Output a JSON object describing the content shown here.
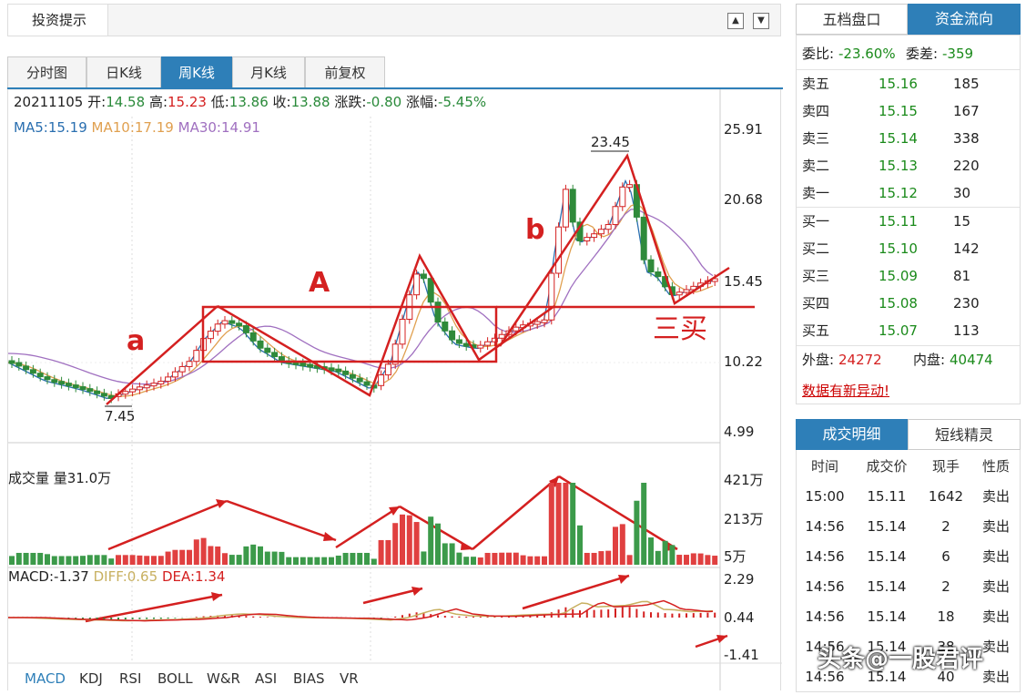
{
  "header": {
    "title": "投资提示",
    "up_icon": "▲",
    "down_icon": "▼"
  },
  "tabs": [
    "分时图",
    "日K线",
    "周K线",
    "月K线",
    "前复权"
  ],
  "active_tab": "周K线",
  "ohlc": {
    "date": "20211105",
    "open_label": "开:",
    "open": "14.58",
    "high_label": "高:",
    "high": "15.23",
    "low_label": "低:",
    "low": "13.86",
    "close_label": "收:",
    "close": "13.88",
    "change_label": "涨跌:",
    "change": "-0.80",
    "pct_label": "涨幅:",
    "pct": "-5.45%"
  },
  "ma": {
    "ma5_label": "MA5:",
    "ma5": "15.19",
    "ma10_label": "MA10:",
    "ma10": "17.19",
    "ma30_label": "MA30:",
    "ma30": "14.91"
  },
  "price_axis": [
    "25.91",
    "20.68",
    "15.45",
    "10.22",
    "4.99"
  ],
  "annotations": {
    "high_price": "23.45",
    "low_price": "7.45",
    "a": "a",
    "A": "A",
    "b": "b",
    "three_buy": "三买"
  },
  "volume": {
    "label": "成交量 量31.0万",
    "axis": [
      "421万",
      "213万",
      "5万"
    ]
  },
  "macd": {
    "macd_label": "MACD:",
    "macd": "-1.37",
    "diff_label": "DIFF:",
    "diff": "0.65",
    "dea_label": "DEA:",
    "dea": "1.34",
    "axis": [
      "2.29",
      "0.44",
      "-1.41"
    ]
  },
  "indicator_tabs": [
    "MACD",
    "KDJ",
    "RSI",
    "BOLL",
    "W&R",
    "ASI",
    "BIAS",
    "VR"
  ],
  "order_book": {
    "tabs": [
      "五档盘口",
      "资金流向"
    ],
    "weibi_label": "委比:",
    "weibi": "-23.60%",
    "weicha_label": "委差:",
    "weicha": "-359",
    "asks": [
      {
        "label": "卖五",
        "price": "15.16",
        "vol": "185"
      },
      {
        "label": "卖四",
        "price": "15.15",
        "vol": "167"
      },
      {
        "label": "卖三",
        "price": "15.14",
        "vol": "338"
      },
      {
        "label": "卖二",
        "price": "15.13",
        "vol": "220"
      },
      {
        "label": "卖一",
        "price": "15.12",
        "vol": "30"
      }
    ],
    "bids": [
      {
        "label": "买一",
        "price": "15.11",
        "vol": "15"
      },
      {
        "label": "买二",
        "price": "15.10",
        "vol": "142"
      },
      {
        "label": "买三",
        "price": "15.09",
        "vol": "81"
      },
      {
        "label": "买四",
        "price": "15.08",
        "vol": "230"
      },
      {
        "label": "买五",
        "price": "15.07",
        "vol": "113"
      }
    ],
    "outer_label": "外盘:",
    "outer": "24272",
    "inner_label": "内盘:",
    "inner": "40474",
    "alert": "数据有新异动!"
  },
  "trades": {
    "tabs": [
      "成交明细",
      "短线精灵"
    ],
    "headers": [
      "时间",
      "成交价",
      "现手",
      "性质"
    ],
    "rows": [
      [
        "15:00",
        "15.11",
        "1642",
        "卖出"
      ],
      [
        "14:56",
        "15.14",
        "2",
        "卖出"
      ],
      [
        "14:56",
        "15.14",
        "6",
        "卖出"
      ],
      [
        "14:56",
        "15.14",
        "2",
        "卖出"
      ],
      [
        "14:56",
        "15.14",
        "18",
        "卖出"
      ],
      [
        "14:56",
        "15.14",
        "38",
        "卖出"
      ],
      [
        "14:56",
        "15.14",
        "40",
        "卖出"
      ]
    ]
  },
  "watermark": "头条@一股君评",
  "colors": {
    "up": "#d42020",
    "down": "#2f8a3a",
    "accent": "#2e7fb8",
    "ma5": "#2a6fb0",
    "ma10": "#e0a050",
    "ma30": "#a070c0"
  }
}
